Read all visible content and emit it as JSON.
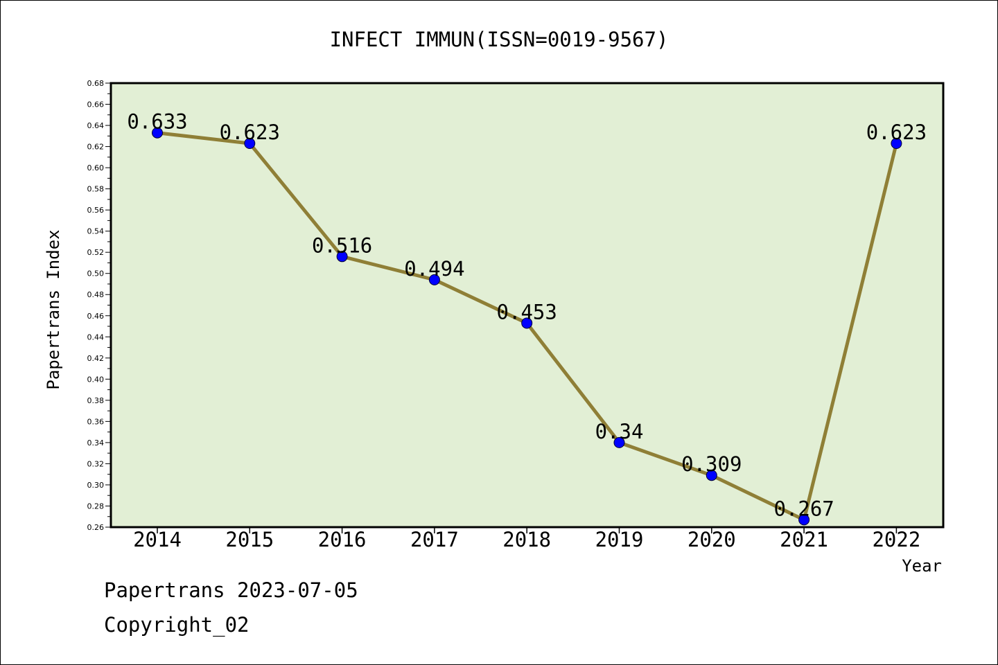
{
  "chart_data": {
    "type": "line",
    "title": "INFECT IMMUN(ISSN=0019-9567)",
    "xlabel": "Year",
    "ylabel": "Papertrans Index",
    "categories": [
      "2014",
      "2015",
      "2016",
      "2017",
      "2018",
      "2019",
      "2020",
      "2021",
      "2022"
    ],
    "series": [
      {
        "values": [
          0.633,
          0.623,
          0.516,
          0.494,
          0.453,
          0.34,
          0.309,
          0.267,
          0.623
        ],
        "labels": [
          "0.633",
          "0.623",
          "0.516",
          "0.494",
          "0.453",
          "0.34",
          "0.309",
          "0.267",
          "0.623"
        ]
      }
    ],
    "ylim": [
      0.26,
      0.68
    ],
    "yticks": [
      "0.26",
      "0.28",
      "0.30",
      "0.32",
      "0.34",
      "0.36",
      "0.38",
      "0.40",
      "0.42",
      "0.44",
      "0.46",
      "0.48",
      "0.50",
      "0.52",
      "0.54",
      "0.56",
      "0.58",
      "0.60",
      "0.62",
      "0.64",
      "0.66",
      "0.68"
    ],
    "grid": false,
    "colors": {
      "plot_background": "#e2efd5",
      "line": "#8f7f36",
      "marker": "#0000ff"
    }
  },
  "footer": {
    "source": "Papertrans 2023-07-05",
    "copyright": "Copyright_02"
  }
}
